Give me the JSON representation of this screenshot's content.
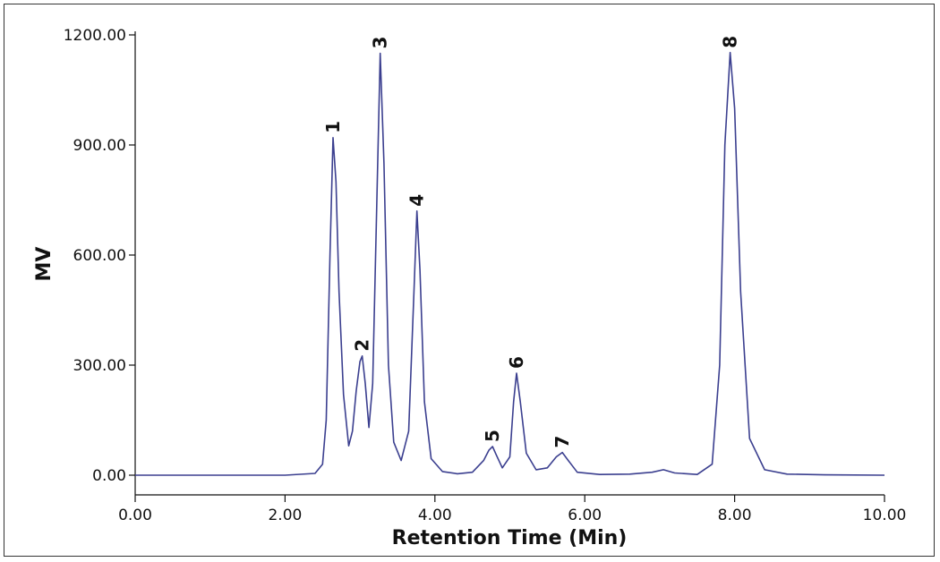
{
  "chart_data": {
    "type": "line",
    "title": "",
    "xlabel": "Retention Time (Min)",
    "ylabel": "MV",
    "xlim": [
      0,
      10
    ],
    "ylim": [
      0,
      1200
    ],
    "x_ticks": [
      0,
      2,
      4,
      6,
      8,
      10
    ],
    "x_tick_labels": [
      "0.00",
      "2.00",
      "4.00",
      "6.00",
      "8.00",
      "10.00"
    ],
    "y_ticks": [
      0,
      300,
      600,
      900,
      1200
    ],
    "y_tick_labels": [
      "0.00",
      "300.00",
      "600.00",
      "900.00",
      "1200.00"
    ],
    "grid": false,
    "line_color": "#3b3f8f",
    "peaks": [
      {
        "label": "1",
        "x": 2.64,
        "y": 920
      },
      {
        "label": "2",
        "x": 3.03,
        "y": 325
      },
      {
        "label": "3",
        "x": 3.27,
        "y": 1150
      },
      {
        "label": "4",
        "x": 3.76,
        "y": 720
      },
      {
        "label": "5",
        "x": 4.77,
        "y": 78
      },
      {
        "label": "6",
        "x": 5.09,
        "y": 278
      },
      {
        "label": "7",
        "x": 5.7,
        "y": 62
      },
      {
        "label": "8",
        "x": 7.94,
        "y": 1152
      }
    ],
    "series": [
      {
        "x": [
          0,
          1,
          2,
          2.4,
          2.5,
          2.55,
          2.6,
          2.64,
          2.68,
          2.72,
          2.78,
          2.85,
          2.9,
          2.95,
          3.0,
          3.03,
          3.07,
          3.12,
          3.17,
          3.22,
          3.27,
          3.32,
          3.38,
          3.45,
          3.55,
          3.65,
          3.72,
          3.76,
          3.8,
          3.86,
          3.95,
          4.1,
          4.3,
          4.5,
          4.65,
          4.72,
          4.77,
          4.82,
          4.9,
          5.0,
          5.05,
          5.09,
          5.14,
          5.22,
          5.35,
          5.5,
          5.62,
          5.7,
          5.78,
          5.9,
          6.2,
          6.6,
          6.9,
          7.05,
          7.2,
          7.5,
          7.7,
          7.8,
          7.87,
          7.94,
          8.0,
          8.08,
          8.2,
          8.4,
          8.7,
          9.2,
          10
        ],
        "y": [
          0,
          0,
          0,
          5,
          30,
          150,
          600,
          920,
          800,
          500,
          220,
          80,
          120,
          230,
          310,
          325,
          250,
          130,
          250,
          700,
          1150,
          850,
          300,
          90,
          40,
          120,
          500,
          720,
          560,
          200,
          45,
          10,
          4,
          8,
          40,
          68,
          78,
          55,
          20,
          50,
          200,
          278,
          200,
          60,
          15,
          20,
          50,
          62,
          40,
          8,
          2,
          3,
          8,
          15,
          6,
          2,
          30,
          300,
          900,
          1152,
          1000,
          500,
          100,
          15,
          3,
          1,
          0
        ]
      }
    ]
  }
}
